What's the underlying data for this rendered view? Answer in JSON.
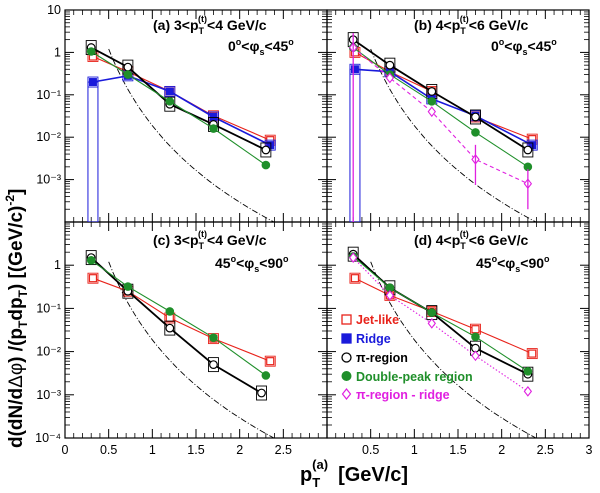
{
  "chart_data": [
    {
      "id": "a",
      "type": "scatter",
      "title": "(a) 3<p_T^(t)<4 GeV/c",
      "title_main": "(a) 3<p",
      "title_sub": "T",
      "title_sup": "(t)",
      "title_tail": "<4 GeV/c",
      "subtitle_pre": "0",
      "subtitle_mid": "<φ",
      "subtitle_s": "s",
      "subtitle_post": "<45",
      "xlim": [
        0,
        3
      ],
      "ylim": [
        0.0001,
        10
      ],
      "yscale": "log",
      "series": [
        {
          "key": "jet",
          "x": [
            0.32,
            0.72,
            1.2,
            1.7,
            2.35
          ],
          "y": [
            0.8,
            0.35,
            0.12,
            0.032,
            0.0085
          ]
        },
        {
          "key": "ridge",
          "x": [
            0.32,
            0.72,
            1.2,
            1.7,
            2.35
          ],
          "y": [
            0.2,
            0.28,
            0.12,
            0.03,
            0.0065
          ]
        },
        {
          "key": "pi",
          "x": [
            0.3,
            0.72,
            1.2,
            1.7,
            2.3
          ],
          "y": [
            1.3,
            0.45,
            0.06,
            0.02,
            0.005
          ]
        },
        {
          "key": "dp",
          "x": [
            0.3,
            0.72,
            1.2,
            1.7,
            2.3
          ],
          "y": [
            1.05,
            0.3,
            0.07,
            0.016,
            0.0022
          ]
        }
      ]
    },
    {
      "id": "b",
      "type": "scatter",
      "title": "(b) 4<p_T^(t)<6 GeV/c",
      "title_main": "(b) 4<p",
      "title_sub": "T",
      "title_sup": "(t)",
      "title_tail": "<6 GeV/c",
      "subtitle_pre": "0",
      "subtitle_mid": "<φ",
      "subtitle_s": "s",
      "subtitle_post": "<45",
      "xlim": [
        0,
        3
      ],
      "ylim": [
        0.0001,
        10
      ],
      "yscale": "log",
      "series": [
        {
          "key": "jet",
          "x": [
            0.32,
            0.72,
            1.2,
            1.7,
            2.35
          ],
          "y": [
            1.0,
            0.35,
            0.12,
            0.03,
            0.009
          ]
        },
        {
          "key": "ridge",
          "x": [
            0.32,
            0.72,
            1.2,
            1.7,
            2.35
          ],
          "y": [
            0.4,
            0.35,
            0.08,
            0.032,
            0.0065
          ]
        },
        {
          "key": "pi",
          "x": [
            0.3,
            0.72,
            1.2,
            1.7,
            2.3
          ],
          "y": [
            2.0,
            0.5,
            0.12,
            0.03,
            0.005
          ]
        },
        {
          "key": "dp",
          "x": [
            0.3,
            0.72,
            1.2,
            1.7,
            2.3
          ],
          "y": [
            1.3,
            0.3,
            0.07,
            0.013,
            0.002
          ]
        },
        {
          "key": "pir",
          "x": [
            0.3,
            0.72,
            1.2,
            1.7,
            2.3
          ],
          "y": [
            1.3,
            0.25,
            0.04,
            0.003,
            0.0008
          ]
        }
      ]
    },
    {
      "id": "c",
      "type": "scatter",
      "title": "(c) 3<p_T^(t)<4 GeV/c",
      "title_main": "(c) 3<p",
      "title_sub": "T",
      "title_sup": "(t)",
      "title_tail": "<4 GeV/c",
      "subtitle_pre": "45",
      "subtitle_mid": "<φ",
      "subtitle_s": "s",
      "subtitle_post": "<90",
      "xlim": [
        0,
        3
      ],
      "ylim": [
        0.0001,
        10
      ],
      "yscale": "log",
      "series": [
        {
          "key": "jet",
          "x": [
            0.32,
            0.72,
            1.2,
            1.7,
            2.35
          ],
          "y": [
            0.5,
            0.25,
            0.06,
            0.02,
            0.006
          ]
        },
        {
          "key": "pi",
          "x": [
            0.3,
            0.72,
            1.2,
            1.7,
            2.25
          ],
          "y": [
            1.5,
            0.25,
            0.035,
            0.005,
            0.0011
          ]
        },
        {
          "key": "dp",
          "x": [
            0.3,
            0.72,
            1.2,
            1.7,
            2.3
          ],
          "y": [
            1.3,
            0.32,
            0.085,
            0.021,
            0.0028
          ]
        }
      ]
    },
    {
      "id": "d",
      "type": "scatter",
      "title": "(d) 4<p_T^(t)<6 GeV/c",
      "title_main": "(d) 4<p",
      "title_sub": "T",
      "title_sup": "(t)",
      "title_tail": "<6 GeV/c",
      "subtitle_pre": "45",
      "subtitle_mid": "<φ",
      "subtitle_s": "s",
      "subtitle_post": "<90",
      "xlim": [
        0,
        3
      ],
      "ylim": [
        0.0001,
        10
      ],
      "yscale": "log",
      "series": [
        {
          "key": "jet",
          "x": [
            0.32,
            0.72,
            1.2,
            1.7,
            2.35
          ],
          "y": [
            0.5,
            0.2,
            0.085,
            0.033,
            0.009
          ]
        },
        {
          "key": "pi",
          "x": [
            0.3,
            0.72,
            1.2,
            1.7,
            2.3
          ],
          "y": [
            1.8,
            0.3,
            0.08,
            0.012,
            0.003
          ]
        },
        {
          "key": "dp",
          "x": [
            0.3,
            0.72,
            1.2,
            1.7,
            2.3
          ],
          "y": [
            1.6,
            0.3,
            0.08,
            0.022,
            0.0035
          ]
        },
        {
          "key": "pir",
          "x": [
            0.3,
            0.72,
            1.2,
            1.7,
            2.3
          ],
          "y": [
            1.5,
            0.2,
            0.045,
            0.008,
            0.0012
          ]
        }
      ]
    }
  ],
  "series_styles": {
    "jet": {
      "color": "#e8231b",
      "marker": "open-square",
      "line": "solid"
    },
    "ridge": {
      "color": "#1a1adb",
      "marker": "filled-square",
      "line": "solid"
    },
    "pi": {
      "color": "#000000",
      "marker": "open-circle",
      "line": "solid"
    },
    "dp": {
      "color": "#1f8f2a",
      "marker": "filled-circle",
      "line": "solid"
    },
    "pir": {
      "color": "#e020e0",
      "marker": "open-diamond",
      "line": "dashed"
    },
    "reference": {
      "color": "#000000",
      "line": "dash-dot"
    }
  },
  "legend": {
    "items": [
      {
        "key": "jet",
        "label": "Jet-like"
      },
      {
        "key": "ridge",
        "label": "Ridge"
      },
      {
        "key": "pi",
        "label": "π-region"
      },
      {
        "key": "dp",
        "label": "Double-peak region"
      },
      {
        "key": "pir",
        "label": "π-region - ridge"
      }
    ]
  },
  "axes": {
    "x_ticks": [
      "0",
      "0.5",
      "1",
      "1.5",
      "2",
      "2.5",
      "3"
    ],
    "y_ticks_top": [
      "10⁻³",
      "10⁻²",
      "10⁻¹",
      "1",
      "10"
    ],
    "y_ticks_bottom": [
      "10⁻⁴",
      "10⁻³",
      "10⁻²",
      "10⁻¹",
      "1"
    ],
    "xlabel": "p_T^(a) [GeV/c]",
    "xlabel_p": "p",
    "xlabel_sub": "T",
    "xlabel_sup": "(a)",
    "xlabel_unit": "[GeV/c]",
    "ylabel": "d(dN/dΔφ) /(p_T dp_T) [(GeV/c)^-2]",
    "ylabel_a": "d(dN/d",
    "ylabel_b": "Δφ",
    "ylabel_c": ") /(p",
    "ylabel_d": "T",
    "ylabel_e": "dp",
    "ylabel_f": "T",
    "ylabel_g": ")   [(GeV/c)",
    "ylabel_h": "-2",
    "ylabel_i": "]"
  }
}
